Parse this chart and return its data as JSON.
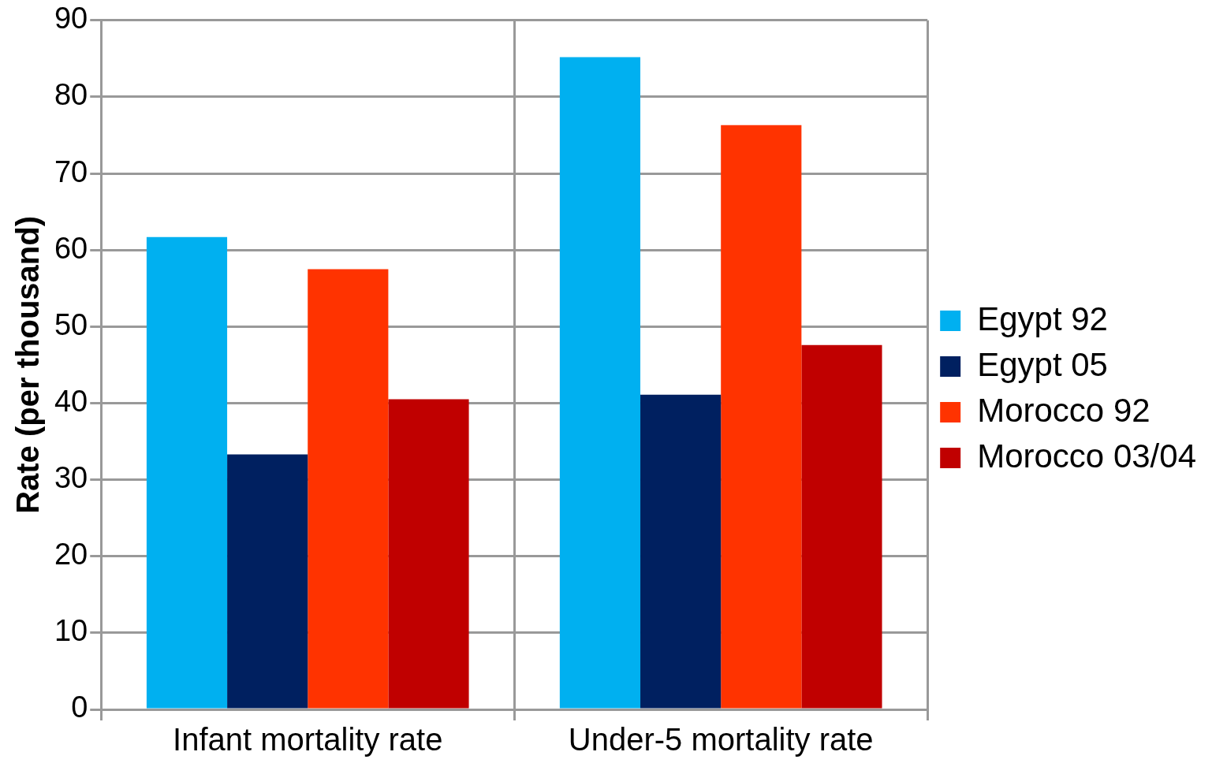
{
  "chart_data": {
    "type": "bar",
    "ylabel": "Rate (per thousand)",
    "categories": [
      "Infant mortality rate",
      "Under-5 mortality rate"
    ],
    "series": [
      {
        "name": "Egypt 92",
        "color": "#00b0f0",
        "values": [
          61.7,
          85.2
        ]
      },
      {
        "name": "Egypt 05",
        "color": "#002060",
        "values": [
          33.3,
          41.1
        ]
      },
      {
        "name": "Morocco 92",
        "color": "#ff3300",
        "values": [
          57.5,
          76.3
        ]
      },
      {
        "name": "Morocco 03/04",
        "color": "#c00000",
        "values": [
          40.5,
          47.6
        ]
      }
    ],
    "ylim": [
      0,
      90
    ],
    "yticks": [
      0,
      10,
      20,
      30,
      40,
      50,
      60,
      70,
      80,
      90
    ],
    "grid": true,
    "legend": "right"
  }
}
